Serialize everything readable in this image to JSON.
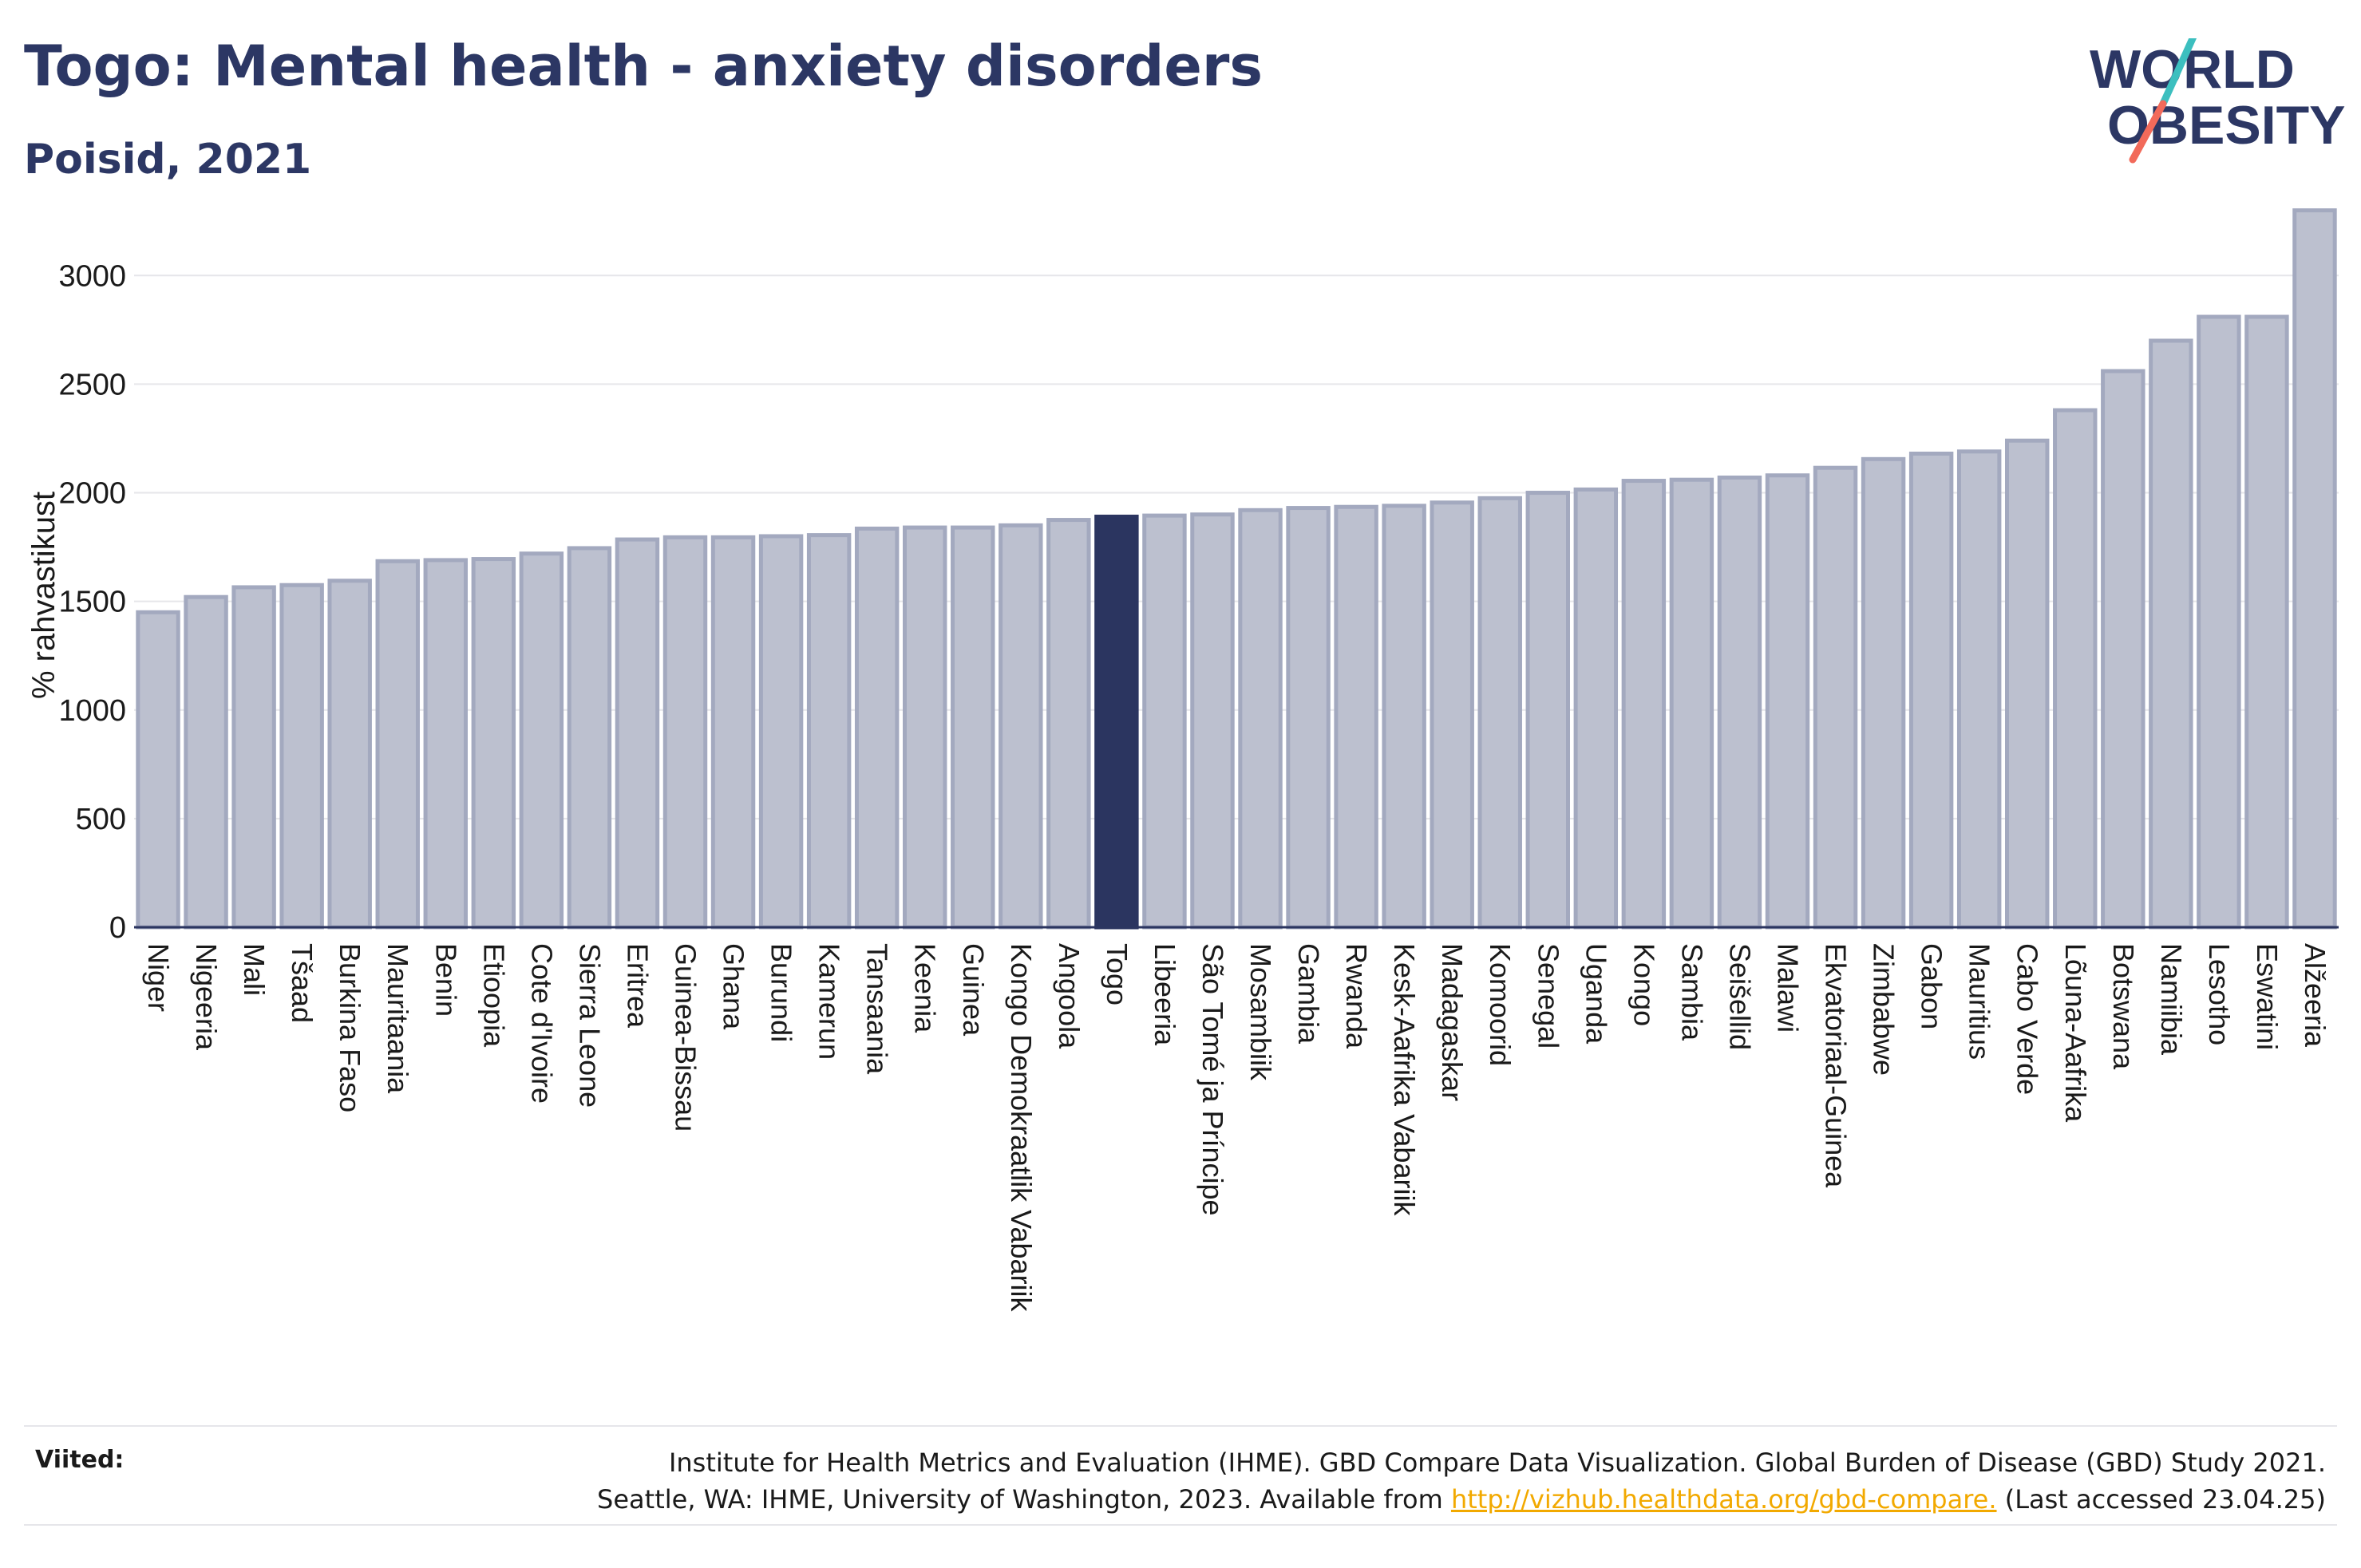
{
  "header": {
    "title": "Togo: Mental health - anxiety disorders",
    "subtitle": "Poisid, 2021"
  },
  "logo": {
    "line1": "WORLD",
    "line2": "OBESITY"
  },
  "footer": {
    "sources_label": "Viited:",
    "sources_line1": "Institute for Health Metrics and Evaluation (IHME). GBD Compare Data Visualization. Global Burden of Disease (GBD) Study 2021.",
    "sources_line2_pre": "Seattle, WA: IHME, University of Washington, 2023. Available from ",
    "sources_link": "http://vizhub.healthdata.org/gbd-compare.",
    "sources_line2_post": " (Last accessed 23.04.25)"
  },
  "colors": {
    "bar": "#bcc0cf",
    "bar_stroke": "#a3a9bf",
    "highlight": "#2b3560",
    "text": "#2b3560",
    "grid": "#e6e6ea",
    "link": "#f2a900",
    "logo_teal": "#3cbfbf",
    "logo_coral": "#f26a5a"
  },
  "chart_data": {
    "type": "bar",
    "title": "Togo: Mental health - anxiety disorders",
    "subtitle": "Poisid, 2021",
    "xlabel": "",
    "ylabel": "% rahvastikust",
    "ylim": [
      0,
      3350
    ],
    "yticks": [
      0,
      500,
      1000,
      1500,
      2000,
      2500,
      3000
    ],
    "grid": true,
    "highlight": "Togo",
    "categories": [
      "Niger",
      "Nigeeria",
      "Mali",
      "Tšaad",
      "Burkina Faso",
      "Mauritaania",
      "Benin",
      "Etioopia",
      "Cote d'Ivoire",
      "Sierra Leone",
      "Eritrea",
      "Guinea-Bissau",
      "Ghana",
      "Burundi",
      "Kamerun",
      "Tansaania",
      "Keenia",
      "Guinea",
      "Kongo Demokraatlik Vabariik",
      "Angoola",
      "Togo",
      "Libeeria",
      "São Tomé ja Príncipe",
      "Mosambiik",
      "Gambia",
      "Rwanda",
      "Kesk-Aafrika Vabariik",
      "Madagaskar",
      "Komoorid",
      "Senegal",
      "Uganda",
      "Kongo",
      "Sambia",
      "Seišellid",
      "Malawi",
      "Ekvatoriaal-Guinea",
      "Zimbabwe",
      "Gabon",
      "Mauritius",
      "Cabo Verde",
      "Lõuna-Aafrika",
      "Botswana",
      "Namiibia",
      "Lesotho",
      "Eswatini",
      "Alžeeria"
    ],
    "values": [
      1450,
      1520,
      1565,
      1575,
      1595,
      1685,
      1690,
      1695,
      1720,
      1745,
      1785,
      1795,
      1795,
      1800,
      1805,
      1835,
      1840,
      1840,
      1850,
      1875,
      1890,
      1895,
      1900,
      1920,
      1930,
      1935,
      1940,
      1955,
      1975,
      2000,
      2015,
      2055,
      2060,
      2070,
      2080,
      2115,
      2155,
      2180,
      2190,
      2240,
      2380,
      2560,
      2700,
      2810,
      2810,
      3300
    ]
  }
}
